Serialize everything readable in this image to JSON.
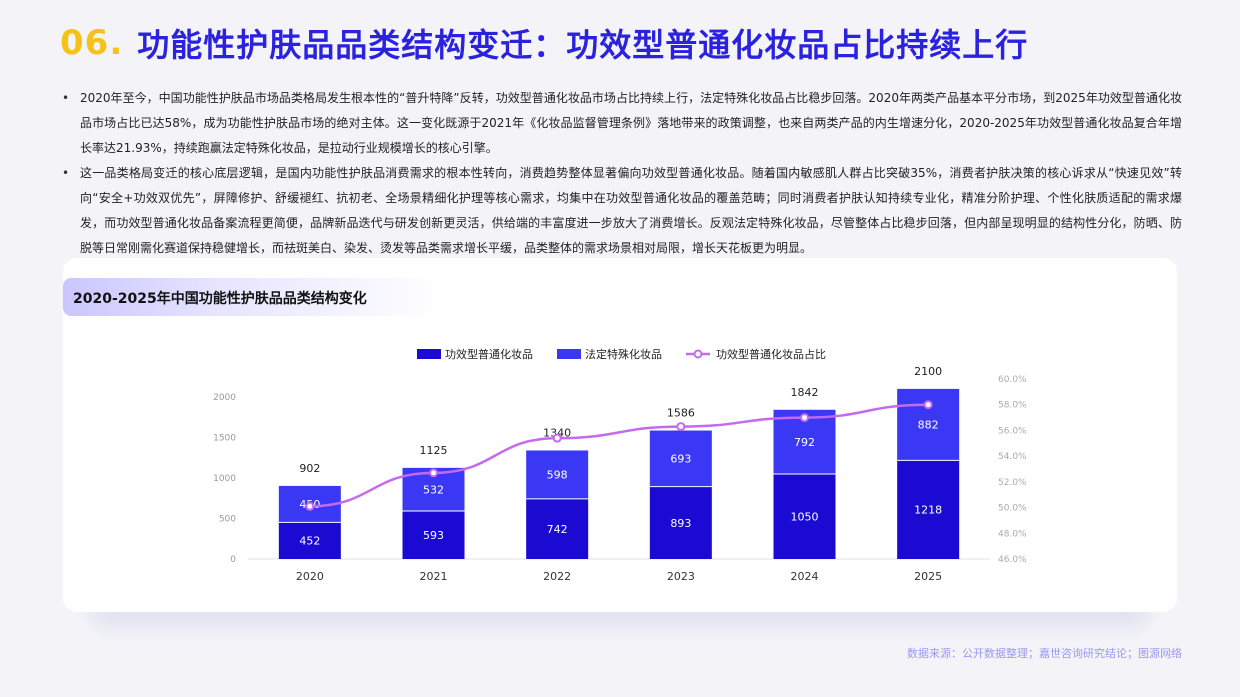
{
  "header": {
    "number": "06.",
    "title": "功能性护肤品品类结构变迁：功效型普通化妆品占比持续上行"
  },
  "bullets": [
    "2020年至今，中国功能性护肤品市场品类格局发生根本性的“普升特降”反转，功效型普通化妆品市场占比持续上行，法定特殊化妆品占比稳步回落。2020年两类产品基本平分市场，到2025年功效型普通化妆品市场占比已达58%，成为功能性护肤品市场的绝对主体。这一变化既源于2021年《化妆品监督管理条例》落地带来的政策调整，也来自两类产品的内生增速分化，2020-2025年功效型普通化妆品复合年增长率达21.93%，持续跑赢法定特殊化妆品，是拉动行业规模增长的核心引擎。",
    "这一品类格局变迁的核心底层逻辑，是国内功能性护肤品消费需求的根本性转向，消费趋势整体显著偏向功效型普通化妆品。随着国内敏感肌人群占比突破35%，消费者护肤决策的核心诉求从“快速见效”转向“安全+功效双优先”，屏障修护、舒缓褪红、抗初老、全场景精细化护理等核心需求，均集中在功效型普通化妆品的覆盖范畴；同时消费者护肤认知持续专业化，精准分阶护理、个性化肤质适配的需求爆发，而功效型普通化妆品备案流程更简便，品牌新品迭代与研发创新更灵活，供给端的丰富度进一步放大了消费增长。反观法定特殊化妆品，尽管整体占比稳步回落，但内部呈现明显的结构性分化，防晒、防脱等日常刚需化赛道保持稳健增长，而祛斑美白、染发、烫发等品类需求增长平缓，品类整体的需求场景相对局限，增长天花板更为明显。"
  ],
  "chart_title": "2020-2025年中国功能性护肤品品类结构变化",
  "source": "数据来源：公开数据整理；嘉世咨询研究结论；图源网络",
  "colors": {
    "general": "#1a0ad2",
    "special": "#3a38f5",
    "share_line": "#c56af0",
    "title_accent": "#2b22e0",
    "number_accent": "#f6c21a"
  },
  "chart_data": {
    "type": "bar",
    "stacked": true,
    "categories": [
      "2020",
      "2021",
      "2022",
      "2023",
      "2024",
      "2025"
    ],
    "series": [
      {
        "name": "功效型普通化妆品",
        "type": "bar",
        "values": [
          452,
          593,
          742,
          893,
          1050,
          1218
        ]
      },
      {
        "name": "法定特殊化妆品",
        "type": "bar",
        "values": [
          450,
          532,
          598,
          693,
          792,
          882
        ]
      },
      {
        "name": "功效型普通化妆品占比",
        "type": "line",
        "axis": "right",
        "values": [
          50.1,
          52.7,
          55.4,
          56.3,
          57.0,
          58.0
        ]
      }
    ],
    "totals": [
      "902",
      "1125",
      "1340",
      "1586",
      "1842",
      "2100"
    ],
    "ylim": [
      0,
      2000
    ],
    "y_ticks": [
      "0",
      "500",
      "1000",
      "1500",
      "2000"
    ],
    "y2lim": [
      46,
      60
    ],
    "y2_ticks": [
      "46.0%",
      "48.0%",
      "50.0%",
      "52.0%",
      "54.0%",
      "56.0%",
      "58.0%",
      "60.0%"
    ],
    "legend_position": "top-center",
    "grid": false
  }
}
